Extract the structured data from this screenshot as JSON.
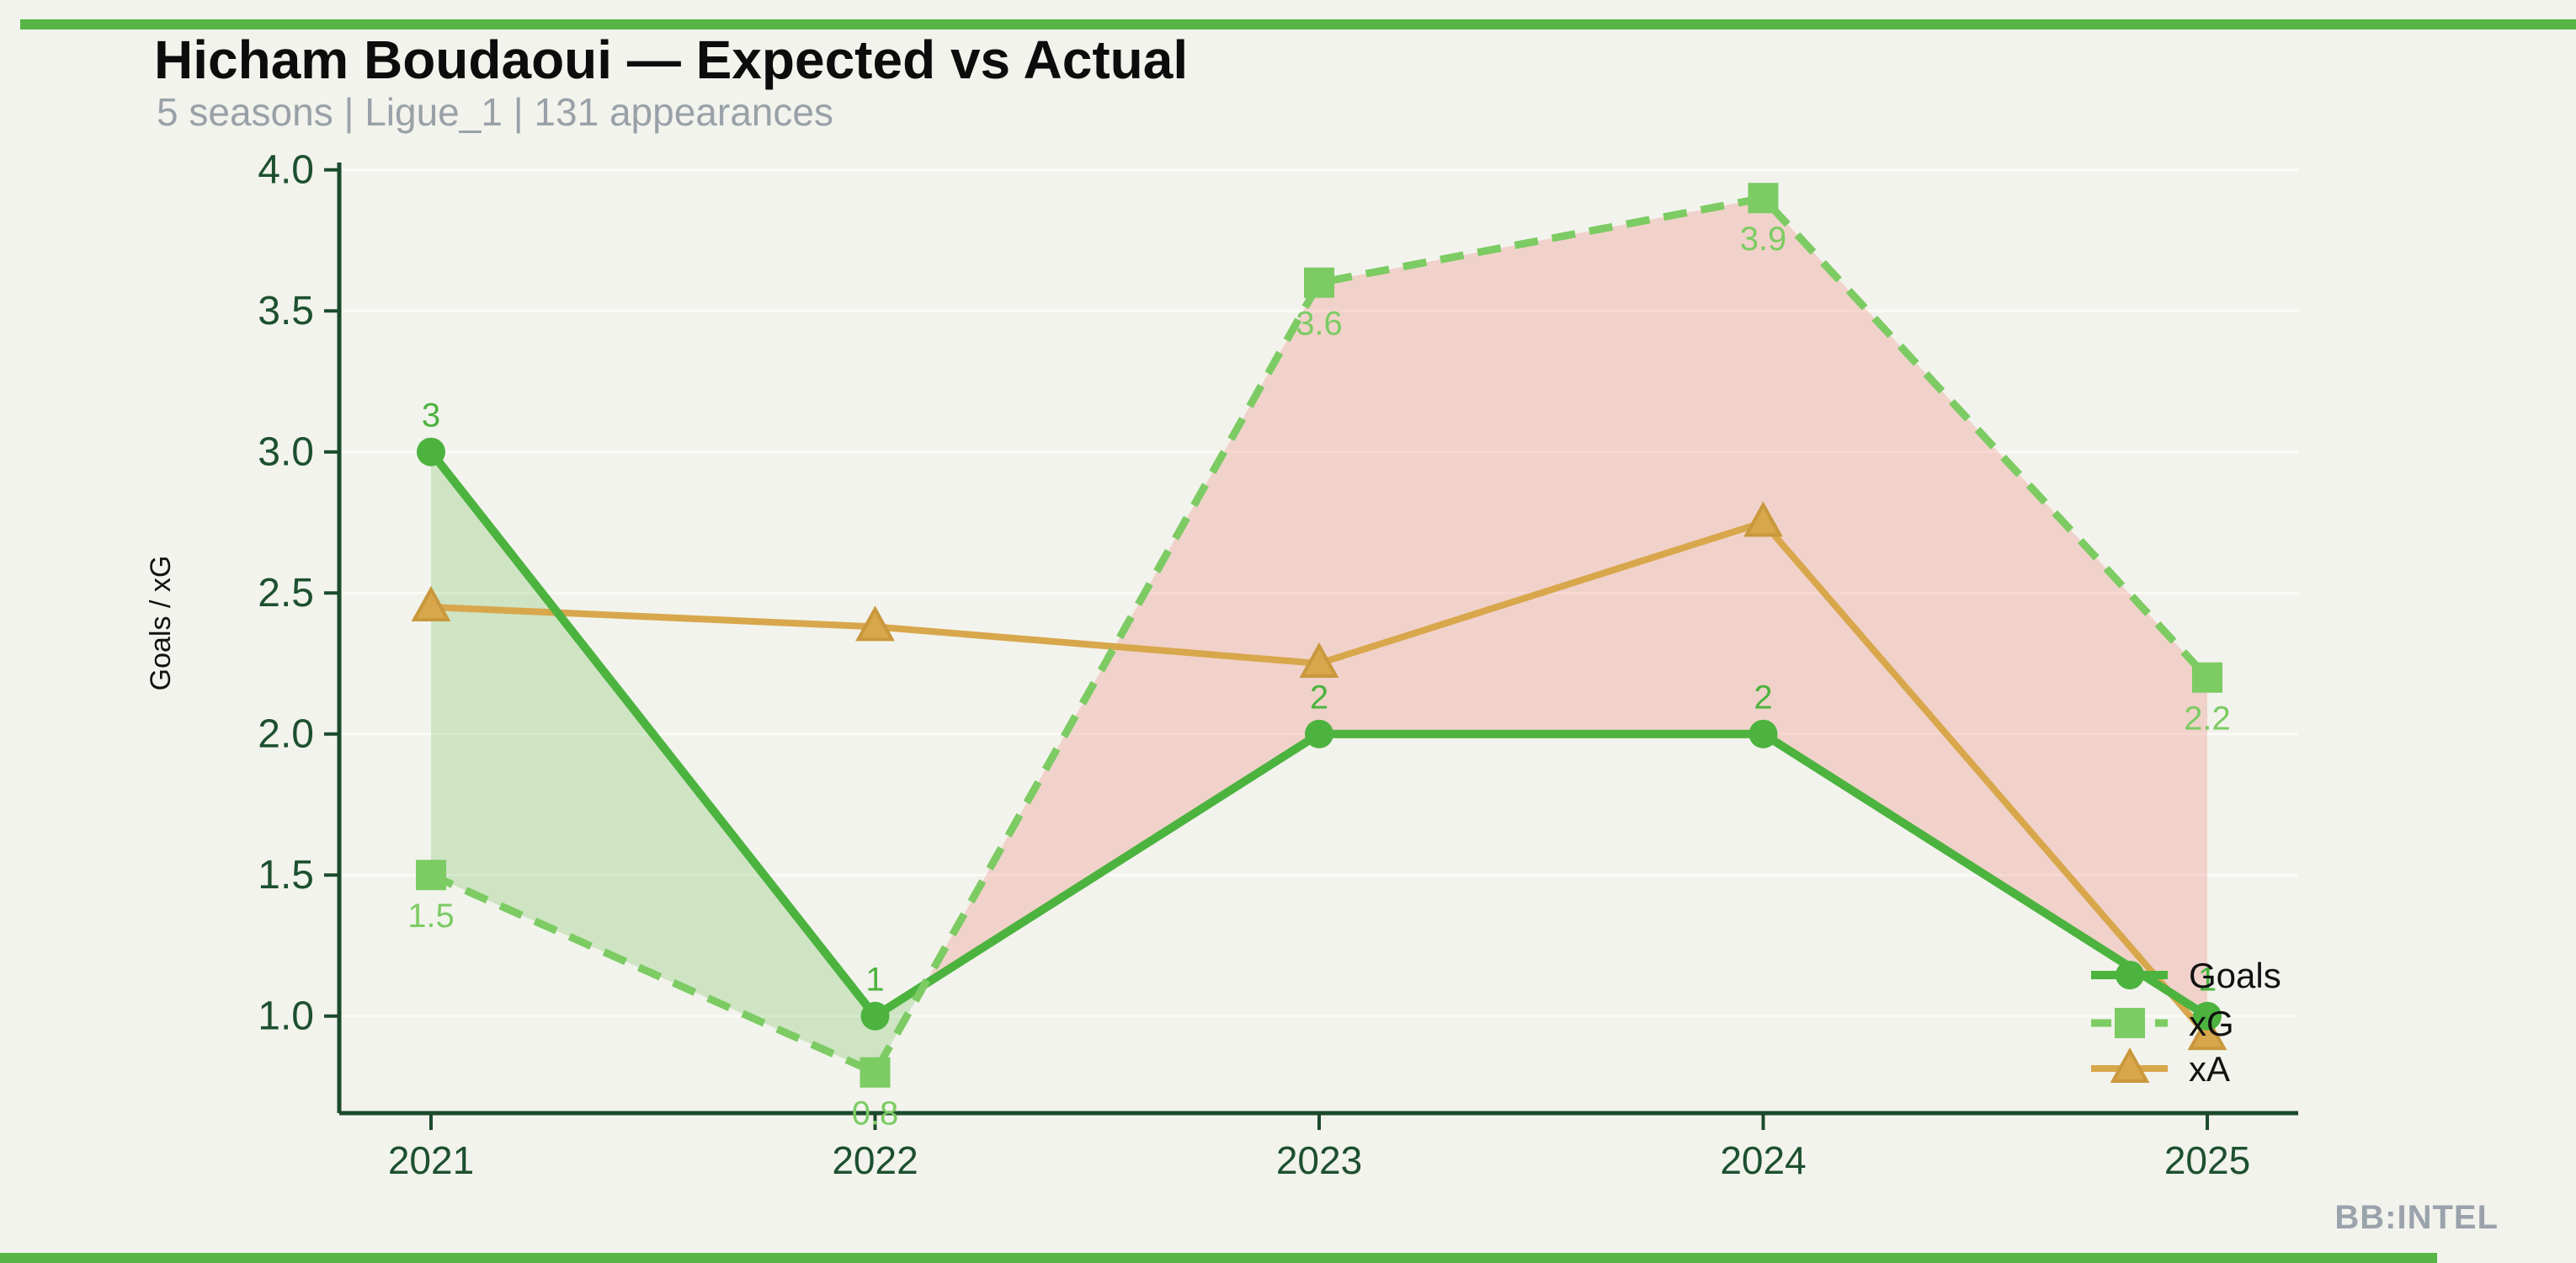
{
  "header": {
    "title": "Hicham Boudaoui — Expected vs Actual",
    "subtitle": "5 seasons | Ligue_1 | 131 appearances"
  },
  "watermark": "BB:INTEL",
  "accent_color": "#56b545",
  "chart_data": {
    "type": "line",
    "title": "Hicham Boudaoui — Expected vs Actual",
    "categories": [
      "2021",
      "2022",
      "2023",
      "2024",
      "2025"
    ],
    "ylabel": "Goals / xG",
    "xlabel": "",
    "ylim": [
      0.65,
      4.05
    ],
    "yticks": [
      "1.0",
      "1.5",
      "2.0",
      "2.5",
      "3.0",
      "3.5",
      "4.0"
    ],
    "ytick_values": [
      1.0,
      1.5,
      2.0,
      2.5,
      3.0,
      3.5,
      4.0
    ],
    "grid": "faint horizontal gridlines at each y tick",
    "legend_position": "lower right inside plot",
    "axis_color": "#1b4a2c",
    "tick_label_color": "#1d5030",
    "series": [
      {
        "name": "Goals",
        "values": [
          3,
          1,
          2,
          2,
          1
        ],
        "point_labels": [
          "3",
          "1",
          "2",
          "2",
          "1"
        ],
        "label_side": "above",
        "color": "#4cb33f",
        "marker": "circle",
        "line_style": "solid"
      },
      {
        "name": "xG",
        "values": [
          1.5,
          0.8,
          3.6,
          3.9,
          2.2
        ],
        "point_labels": [
          "1.5",
          "0.8",
          "3.6",
          "3.9",
          "2.2"
        ],
        "label_side": "below",
        "color": "#7ccb63",
        "marker": "square",
        "line_style": "dashed"
      },
      {
        "name": "xA",
        "values": [
          2.45,
          2.38,
          2.25,
          2.75,
          0.93
        ],
        "point_labels": [],
        "label_side": "none",
        "color": "#d8a74c",
        "marker": "triangle",
        "line_style": "solid"
      }
    ],
    "fill_between": {
      "upper_series": "Goals",
      "lower_series": "xG",
      "goals_above_color": "rgba(124,197,98,0.30)",
      "xg_above_color": "rgba(240,140,130,0.32)"
    }
  },
  "legend": {
    "items": [
      "Goals",
      "xG",
      "xA"
    ],
    "text_color": "#111111"
  }
}
